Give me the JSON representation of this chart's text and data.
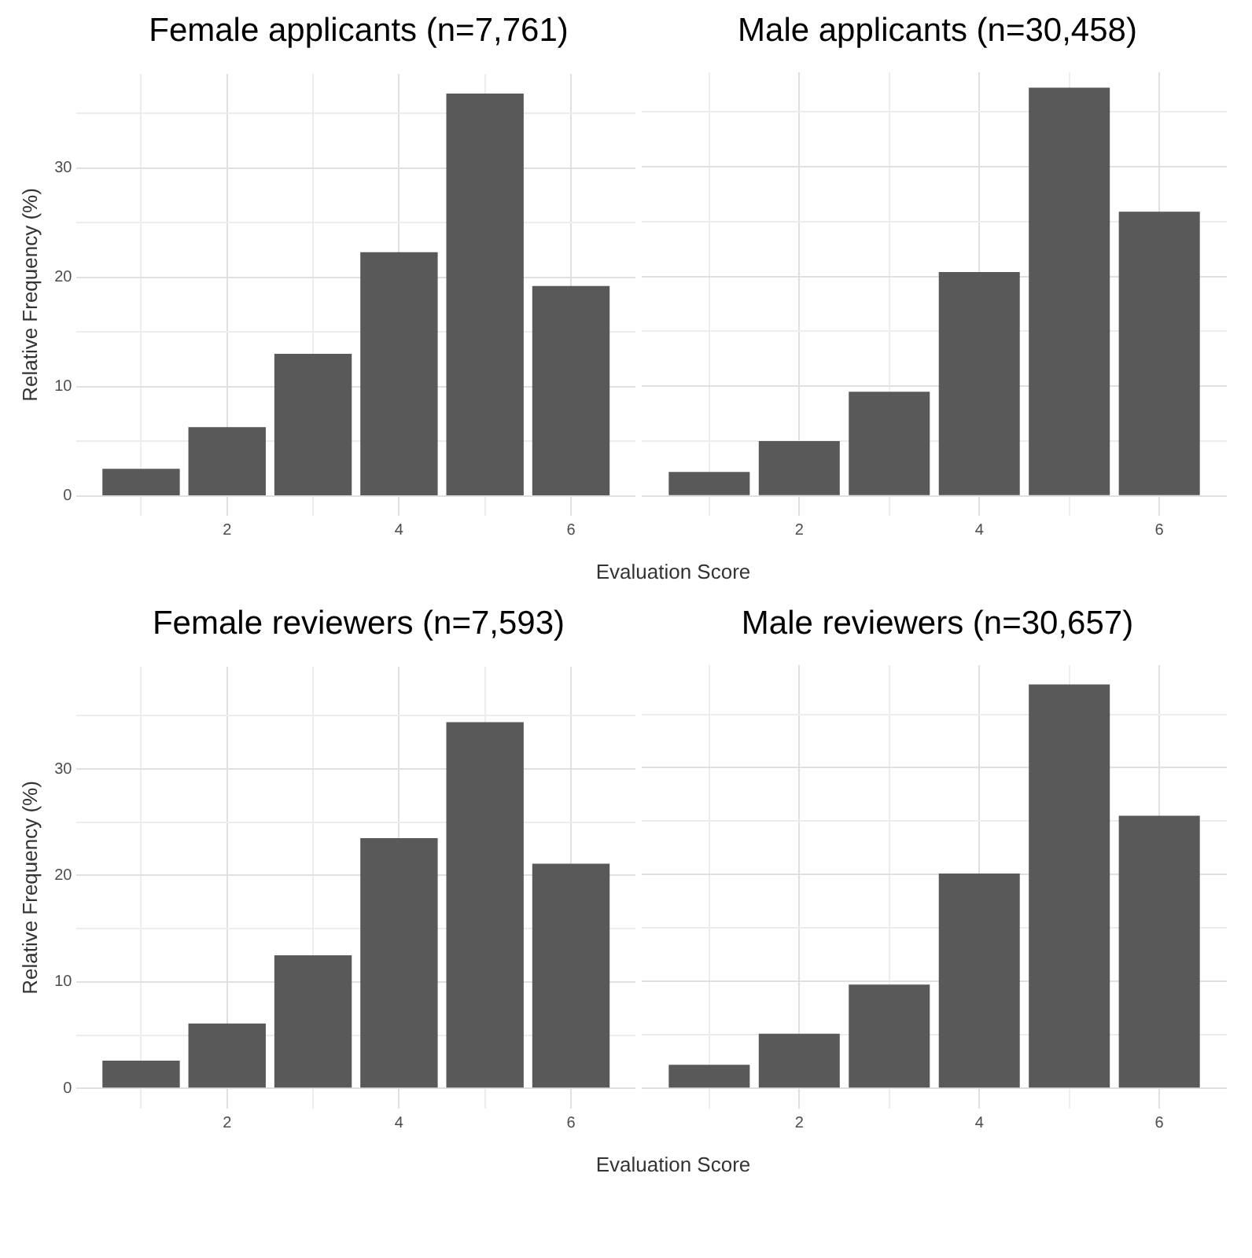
{
  "chart_data": [
    {
      "type": "bar",
      "title": "Female applicants (n=7,761)",
      "ylabel": "Relative Frequency (%)",
      "xlabel": "Evaluation Score",
      "x": [
        1,
        2,
        3,
        4,
        5,
        6
      ],
      "color": "#595959",
      "values": [
        2.5,
        6.3,
        13.0,
        22.3,
        36.8,
        19.2
      ],
      "xlim": [
        0.25,
        6.75
      ],
      "xticks": [
        {
          "value": 1,
          "label": null
        },
        2,
        {
          "value": 3,
          "label": null
        },
        4,
        {
          "value": 5,
          "label": null
        },
        6
      ],
      "ylim": [
        -1.8,
        38.6
      ],
      "yticks": [
        0,
        {
          "value": 5,
          "label": null
        },
        10,
        {
          "value": 15,
          "label": null
        },
        20,
        {
          "value": 25,
          "label": null
        },
        30,
        {
          "value": 35,
          "label": null
        }
      ],
      "grid": true
    },
    {
      "type": "bar",
      "title": "Male applicants (n=30,458)",
      "x": [
        1,
        2,
        3,
        4,
        5,
        6
      ],
      "color": "#595959",
      "values": [
        2.2,
        5.0,
        9.5,
        20.4,
        37.2,
        25.9
      ],
      "xlim": [
        0.25,
        6.75
      ],
      "xticks": [
        {
          "value": 1,
          "label": null
        },
        2,
        {
          "value": 3,
          "label": null
        },
        4,
        {
          "value": 5,
          "label": null
        },
        6
      ],
      "ylim": [
        -1.8,
        38.6
      ],
      "yticks": [
        0,
        {
          "value": 5,
          "label": null
        },
        10,
        {
          "value": 15,
          "label": null
        },
        20,
        {
          "value": 25,
          "label": null
        },
        30,
        {
          "value": 35,
          "label": null
        }
      ],
      "grid": true,
      "tick_labels": "x"
    },
    {
      "type": "bar",
      "title": "Female reviewers (n=7,593)",
      "ylabel": "Relative Frequency (%)",
      "xlabel": "Evaluation Score",
      "x": [
        1,
        2,
        3,
        4,
        5,
        6
      ],
      "color": "#595959",
      "values": [
        2.6,
        6.1,
        12.5,
        23.5,
        34.4,
        21.1
      ],
      "xlim": [
        0.25,
        6.75
      ],
      "xticks": [
        {
          "value": 1,
          "label": null
        },
        2,
        {
          "value": 3,
          "label": null
        },
        4,
        {
          "value": 5,
          "label": null
        },
        6
      ],
      "ylim": [
        -1.9,
        39.6
      ],
      "yticks": [
        0,
        {
          "value": 5,
          "label": null
        },
        10,
        {
          "value": 15,
          "label": null
        },
        20,
        {
          "value": 25,
          "label": null
        },
        30,
        {
          "value": 35,
          "label": null
        }
      ],
      "grid": true
    },
    {
      "type": "bar",
      "title": "Male reviewers (n=30,657)",
      "x": [
        1,
        2,
        3,
        4,
        5,
        6
      ],
      "color": "#595959",
      "values": [
        2.2,
        5.1,
        9.7,
        20.1,
        37.8,
        25.5
      ],
      "xlim": [
        0.25,
        6.75
      ],
      "xticks": [
        {
          "value": 1,
          "label": null
        },
        2,
        {
          "value": 3,
          "label": null
        },
        4,
        {
          "value": 5,
          "label": null
        },
        6
      ],
      "ylim": [
        -1.9,
        39.6
      ],
      "yticks": [
        0,
        {
          "value": 5,
          "label": null
        },
        10,
        {
          "value": 15,
          "label": null
        },
        20,
        {
          "value": 25,
          "label": null
        },
        30,
        {
          "value": 35,
          "label": null
        }
      ],
      "grid": true,
      "tick_labels": "x"
    }
  ]
}
